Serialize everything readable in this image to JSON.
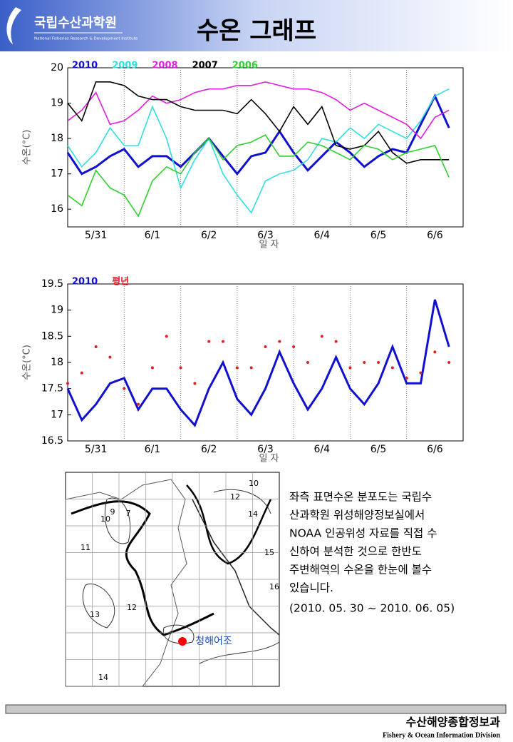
{
  "header": {
    "org": "국립수산과학원",
    "org_en": "National Fisheries Research & Development Institute",
    "title": "수온 그래프"
  },
  "chart_data": [
    {
      "type": "line",
      "y_label": "수온(°C)",
      "x_label": "일 자",
      "categories": [
        null,
        null,
        "5/31",
        null,
        null,
        null,
        "6/1",
        null,
        null,
        null,
        "6/2",
        null,
        null,
        null,
        "6/3",
        null,
        null,
        null,
        "6/4",
        null,
        null,
        null,
        "6/5",
        null,
        null,
        null,
        "6/6",
        null
      ],
      "ylim": [
        15.5,
        20
      ],
      "yticks": [
        16,
        17,
        18,
        19,
        20
      ],
      "series": [
        {
          "name": "2010",
          "color": "#1010d0",
          "values": [
            17.6,
            17.0,
            17.2,
            17.5,
            17.7,
            17.2,
            17.5,
            17.5,
            17.2,
            17.6,
            18.0,
            17.5,
            17.0,
            17.5,
            17.6,
            18.2,
            17.6,
            17.1,
            17.5,
            17.9,
            17.6,
            17.2,
            17.5,
            17.7,
            17.6,
            18.4,
            19.2,
            18.3
          ]
        },
        {
          "name": "2009",
          "color": "#30e0e0",
          "values": [
            17.8,
            17.2,
            17.6,
            18.3,
            17.8,
            17.8,
            18.9,
            18.0,
            16.6,
            17.4,
            18.0,
            17.0,
            16.4,
            15.9,
            16.8,
            17.0,
            17.1,
            17.4,
            18.0,
            17.9,
            18.3,
            18.0,
            18.4,
            18.2,
            18.0,
            18.5,
            19.2,
            19.4
          ]
        },
        {
          "name": "2008",
          "color": "#e020e0",
          "values": [
            18.5,
            18.8,
            19.3,
            18.4,
            18.5,
            18.8,
            19.2,
            19.0,
            19.1,
            19.3,
            19.4,
            19.4,
            19.5,
            19.5,
            19.6,
            19.5,
            19.4,
            19.4,
            19.3,
            19.1,
            18.8,
            19.0,
            18.8,
            18.6,
            18.4,
            18.0,
            18.6,
            18.8
          ]
        },
        {
          "name": "2007",
          "color": "#000000",
          "values": [
            19.0,
            18.5,
            19.6,
            19.6,
            19.5,
            19.2,
            19.1,
            19.1,
            18.9,
            18.8,
            18.8,
            18.8,
            18.7,
            19.1,
            18.7,
            18.2,
            18.9,
            18.4,
            18.9,
            17.8,
            17.7,
            17.8,
            18.2,
            17.6,
            17.3,
            17.4,
            17.4,
            17.4
          ]
        },
        {
          "name": "2006",
          "color": "#30d030",
          "values": [
            16.4,
            16.1,
            17.1,
            16.6,
            16.4,
            15.8,
            16.8,
            17.2,
            17.0,
            17.6,
            18.0,
            17.4,
            17.8,
            17.9,
            18.1,
            17.5,
            17.5,
            17.9,
            17.8,
            17.6,
            17.4,
            17.8,
            17.7,
            17.4,
            17.6,
            17.7,
            17.8,
            16.9
          ]
        }
      ]
    },
    {
      "type": "line",
      "y_label": "수온(°C)",
      "x_label": "일 자",
      "categories": [
        null,
        null,
        "5/31",
        null,
        null,
        null,
        "6/1",
        null,
        null,
        null,
        "6/2",
        null,
        null,
        null,
        "6/3",
        null,
        null,
        null,
        "6/4",
        null,
        null,
        null,
        "6/5",
        null,
        null,
        null,
        "6/6",
        null
      ],
      "ylim": [
        16.5,
        19.5
      ],
      "yticks": [
        16.5,
        17,
        17.5,
        18,
        18.5,
        19,
        19.5
      ],
      "series": [
        {
          "name": "2010",
          "color": "#1010d0",
          "style": "line",
          "values": [
            17.5,
            16.9,
            17.2,
            17.6,
            17.7,
            17.1,
            17.5,
            17.5,
            17.1,
            16.8,
            17.5,
            18.0,
            17.3,
            17.0,
            17.5,
            18.2,
            17.6,
            17.1,
            17.5,
            18.1,
            17.5,
            17.2,
            17.6,
            18.3,
            17.6,
            17.6,
            19.2,
            18.3
          ]
        },
        {
          "name": "평년",
          "color": "#e02020",
          "style": "markers",
          "values": [
            17.6,
            17.8,
            18.3,
            18.1,
            17.5,
            17.2,
            17.9,
            18.5,
            17.9,
            17.6,
            18.4,
            18.4,
            17.9,
            17.9,
            18.3,
            18.4,
            18.3,
            18.0,
            18.5,
            18.4,
            17.9,
            18.0,
            18.0,
            17.9,
            17.7,
            17.8,
            18.2,
            18.0
          ]
        }
      ]
    }
  ],
  "map": {
    "labels": [
      "9",
      "7",
      "10",
      "11",
      "12",
      "13",
      "14",
      "15",
      "16",
      "10",
      "12",
      "14",
      "청해어조"
    ]
  },
  "text": {
    "lines": [
      "좌측 표면수온 분포도는 국립수",
      "산과학원 위성해양정보실에서",
      "NOAA 인공위성 자료를 직접 수",
      "신하여 분석한 것으로  한반도",
      "주변해역의 수온을 한눈에 볼수",
      "있습니다.",
      "(2010. 05. 30 ~ 2010. 06. 05)"
    ]
  },
  "footer": {
    "title": "수산해양종합정보과",
    "subtitle": "Fishery & Ocean Information Division"
  }
}
